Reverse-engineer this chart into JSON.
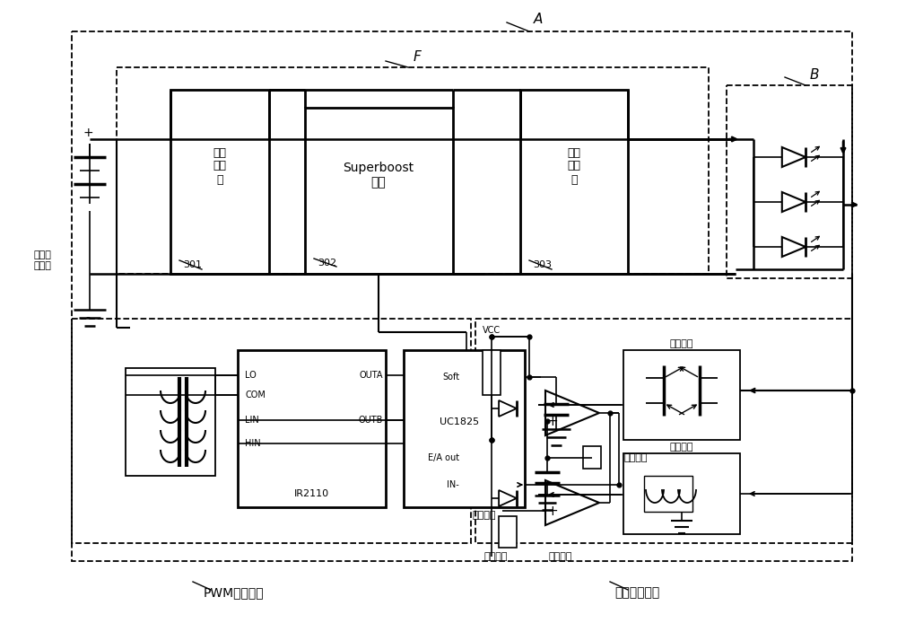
{
  "bg": "#ffffff",
  "lc": "#000000",
  "figsize": [
    10.0,
    7.04
  ],
  "dpi": 100,
  "lA": "A",
  "lB": "B",
  "lF": "F",
  "l301": "301",
  "l302": "302",
  "l303": "303",
  "lInFilt": "输入\n滤波\n器",
  "lSuperboost": "Superboost\n电路",
  "lOutFilt": "输出\n滤波\n器",
  "lBattery": "高压蓄\n电池组",
  "lPWM": "PWM驱动电路",
  "lFB": "反馈控制电路",
  "lIR2110": "IR2110",
  "lLO": "LO",
  "lCOM": "COM",
  "lLIN": "LIN",
  "lHIN": "HIN",
  "lOUTA": "OUTA",
  "lOUTB": "OUTB",
  "lUC1825": "UC1825",
  "lSoft": "Soft",
  "lEA": "E/A out",
  "lIN": "IN-",
  "lVCC": "VCC",
  "lCS": "电流采样",
  "lCR": "电流基准",
  "lVR": "电压基准",
  "lVS": "电压采样"
}
